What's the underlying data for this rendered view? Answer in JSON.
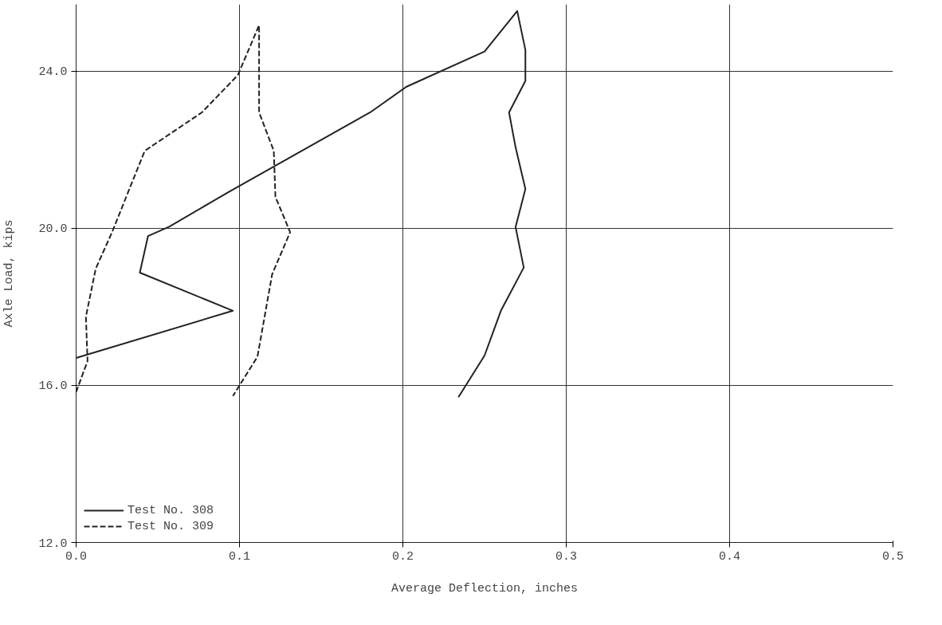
{
  "chart_data": {
    "type": "line",
    "xlabel": "Average Deflection, inches",
    "ylabel": "Axle Load, kips",
    "xlim": [
      0,
      0.5
    ],
    "xticks": [
      {
        "value": 0,
        "label": "0.0"
      },
      0.1,
      0.2,
      0.3,
      0.4,
      0.5
    ],
    "ylim": [
      12,
      25.7
    ],
    "yticks": [
      {
        "value": 12,
        "label": "12.0"
      },
      {
        "value": 16,
        "label": "16.0"
      },
      {
        "value": 20,
        "label": "20.0"
      },
      {
        "value": 24,
        "label": "24.0"
      }
    ],
    "grid": true,
    "legend": "bottom left",
    "marker": "none",
    "series": [
      {
        "name": "Test No. 308",
        "color": "#222222",
        "line_style": "solid",
        "x": [
          0,
          0.096,
          0.039,
          0.044,
          0.057,
          0.094,
          0.18,
          0.202,
          0.25,
          0.27,
          0.275,
          0.275,
          0.265,
          0.269,
          0.275,
          0.269,
          0.274,
          0.26,
          0.25,
          0.234
        ],
        "values": [
          16.7,
          17.9,
          18.87,
          19.8,
          20.04,
          20.94,
          22.95,
          23.6,
          24.5,
          25.53,
          24.54,
          23.75,
          22.95,
          22.06,
          21.0,
          20.03,
          19.0,
          17.9,
          16.76,
          15.7
        ]
      },
      {
        "name": "Test No. 309",
        "color": "#222222",
        "line_style": "dashed",
        "x": [
          0,
          0.007,
          0.006,
          0.012,
          0.022,
          0.042,
          0.077,
          0.099,
          0.112,
          0.112,
          0.121,
          0.122,
          0.131,
          0.12,
          0.111,
          0.096
        ],
        "values": [
          15.83,
          16.62,
          17.75,
          18.97,
          19.9,
          21.97,
          22.95,
          23.9,
          25.17,
          22.95,
          21.97,
          20.8,
          19.9,
          18.83,
          16.73,
          15.73
        ]
      }
    ]
  }
}
